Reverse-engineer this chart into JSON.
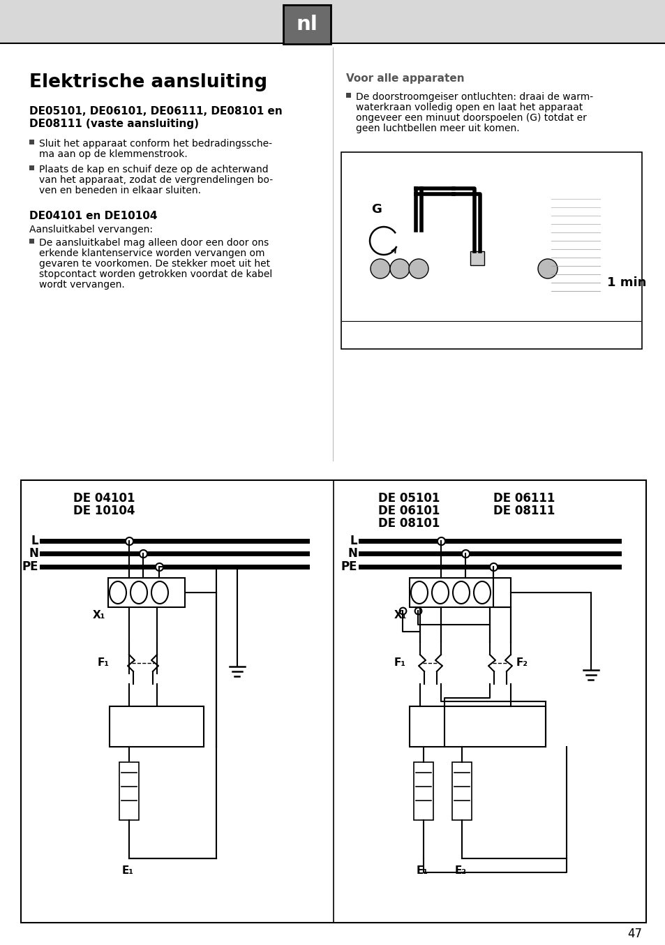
{
  "bg_color": "#ffffff",
  "header_bg": "#d8d8d8",
  "header_text": "nl",
  "title": "Elektrische aansluiting",
  "subtitle1_line1": "DE05101, DE06101, DE06111, DE08101 en",
  "subtitle1_line2": "DE08111 (vaste aansluiting)",
  "bullet1_1_line1": "Sluit het apparaat conform het bedradingssche-",
  "bullet1_1_line2": "ma aan op de klemmenstrook.",
  "bullet1_2_line1": "Plaats de kap en schuif deze op de achterwand",
  "bullet1_2_line2": "van het apparaat, zodat de vergrendelingen bo-",
  "bullet1_2_line3": "ven en beneden in elkaar sluiten.",
  "subtitle2": "DE04101 en DE10104",
  "subtitle2b": "Aansluitkabel vervangen:",
  "bullet2_1_line1": "De aansluitkabel mag alleen door een door ons",
  "bullet2_1_line2": "erkende klantenservice worden vervangen om",
  "bullet2_1_line3": "gevaren te voorkomen. De stekker moet uit het",
  "bullet2_1_line4": "stopcontact worden getrokken voordat de kabel",
  "bullet2_1_line5": "wordt vervangen.",
  "right_title": "Voor alle apparaten",
  "right_b1": "De doorstroomgeiser ontluchten: draai de warm-",
  "right_b2": "waterkraan volledig open en laat het apparaat",
  "right_b3": "ongeveer een minuut doorspoelen (G) totdat er",
  "right_b4": "geen luchtbellen meer uit komen.",
  "page_number": "47",
  "diag_left_t1": "DE 04101",
  "diag_left_t2": "DE 10104",
  "diag_right_t1": "DE 05101",
  "diag_right_t2": "DE 06101",
  "diag_right_t3": "DE 08101",
  "diag_right_t4": "DE 06111",
  "diag_right_t5": "DE 08111"
}
